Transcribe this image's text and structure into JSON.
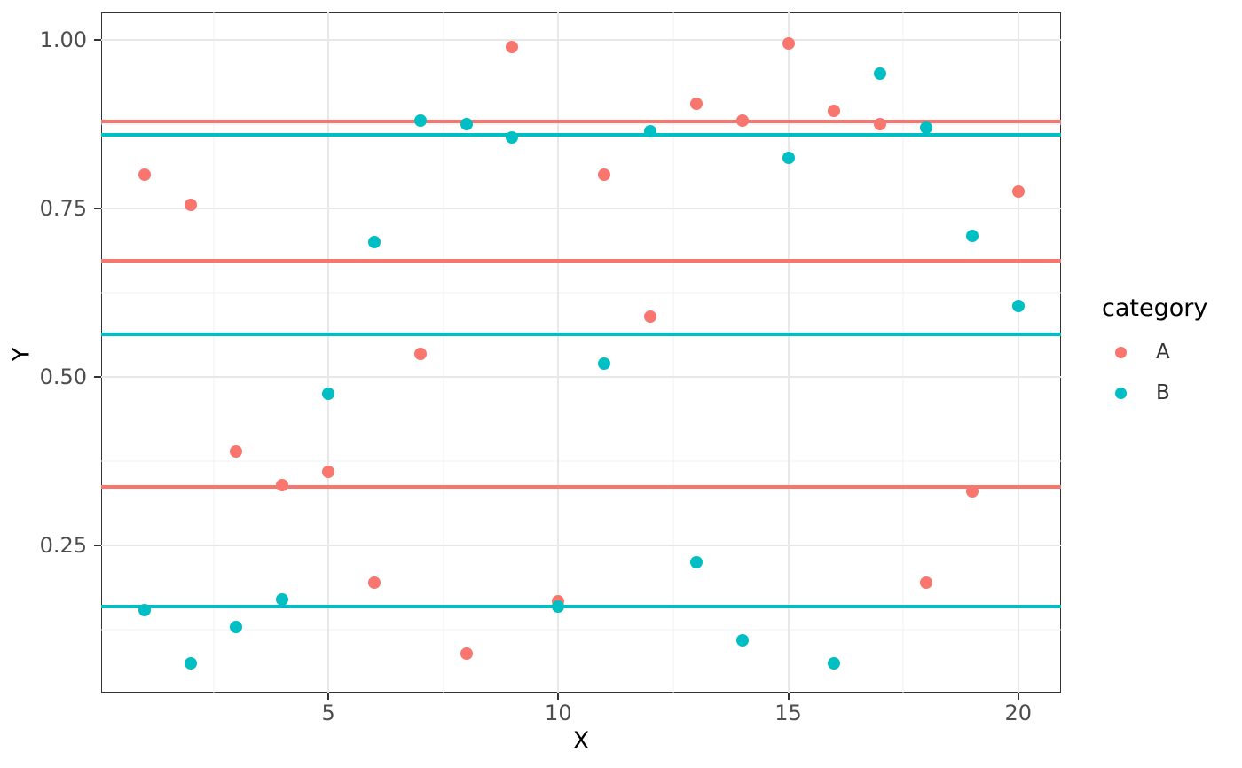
{
  "chart_data": {
    "type": "scatter",
    "title": "",
    "xlabel": "X",
    "ylabel": "Y",
    "grid": true,
    "xlim": [
      0.06,
      20.93
    ],
    "ylim": [
      0.032,
      1.041
    ],
    "x_ticks": [
      5,
      10,
      15,
      20
    ],
    "x_tick_labels": [
      "5",
      "10",
      "15",
      "20"
    ],
    "x_minor_ticks": [
      2.5,
      7.5,
      12.5,
      17.5
    ],
    "y_ticks": [
      0.25,
      0.5,
      0.75,
      1.0
    ],
    "y_tick_labels": [
      "0.25",
      "0.50",
      "0.75",
      "1.00"
    ],
    "y_minor_ticks": [
      0.125,
      0.375,
      0.625,
      0.875
    ],
    "series": [
      {
        "name": "A",
        "color": "#F8766D",
        "x": [
          1,
          2,
          3,
          4,
          5,
          6,
          7,
          8,
          9,
          10,
          11,
          12,
          13,
          14,
          15,
          16,
          17,
          18,
          19,
          20
        ],
        "y": [
          0.8,
          0.755,
          0.39,
          0.34,
          0.36,
          0.195,
          0.535,
          0.09,
          0.99,
          0.168,
          0.8,
          0.59,
          0.905,
          0.88,
          0.995,
          0.895,
          0.875,
          0.195,
          0.33,
          0.775
        ]
      },
      {
        "name": "B",
        "color": "#00BFC4",
        "x": [
          1,
          2,
          3,
          4,
          5,
          6,
          7,
          8,
          9,
          10,
          11,
          12,
          13,
          14,
          15,
          16,
          17,
          18,
          19,
          20
        ],
        "y": [
          0.155,
          0.075,
          0.13,
          0.17,
          0.475,
          0.7,
          0.88,
          0.875,
          0.855,
          0.16,
          0.52,
          0.865,
          0.225,
          0.11,
          0.825,
          0.075,
          0.95,
          0.87,
          0.71,
          0.605
        ]
      }
    ],
    "hlines": [
      {
        "series": "A",
        "y": 0.879,
        "color": "#F8766D"
      },
      {
        "series": "A",
        "y": 0.672,
        "color": "#F8766D"
      },
      {
        "series": "A",
        "y": 0.337,
        "color": "#F8766D"
      },
      {
        "series": "B",
        "y": 0.86,
        "color": "#00BFC4"
      },
      {
        "series": "B",
        "y": 0.563,
        "color": "#00BFC4"
      },
      {
        "series": "B",
        "y": 0.16,
        "color": "#00BFC4"
      }
    ],
    "legend": {
      "position": "right",
      "title": "category",
      "entries": [
        {
          "label": "A",
          "color": "#F8766D"
        },
        {
          "label": "B",
          "color": "#00BFC4"
        }
      ]
    }
  },
  "colors": {
    "series_a": "#F8766D",
    "series_b": "#00BFC4",
    "grid_major": "#E8E8E8",
    "grid_minor": "#F2F2F2",
    "panel_border": "#333333",
    "tick_text": "#4d4d4d",
    "title_text": "#000000"
  }
}
